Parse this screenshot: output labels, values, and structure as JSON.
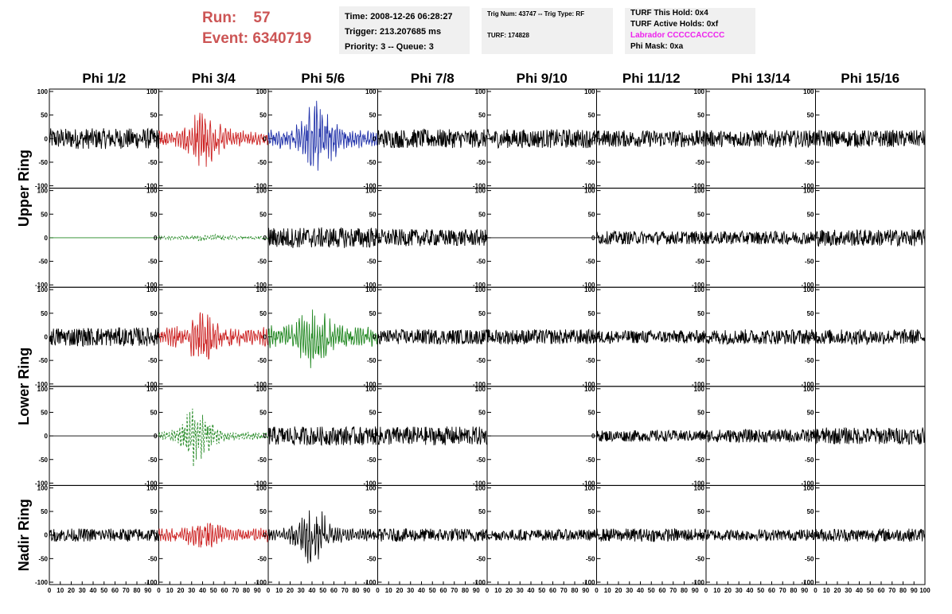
{
  "header": {
    "run_label": "Run:",
    "run_value": "57",
    "event_label": "Event:",
    "event_value": "6340719",
    "time": "Time: 2008-12-26 06:28:27",
    "trigger": "Trigger: 213.207685 ms",
    "priority": "Priority: 3 -- Queue: 3",
    "trig_num": "Trig Num: 43747 -- Trig Type: RF",
    "turf": "TURF: 174828",
    "turf_this_hold": "TURF This Hold: 0x4",
    "turf_active_holds": "TURF Active Holds: 0xf",
    "labrador": "Labrador CCCCCACCCC",
    "phi_mask": "Phi Mask: 0xa"
  },
  "colors": {
    "run_text": "#cc5555",
    "labrador_text": "#ee22ee",
    "red_trace": "#cc2222",
    "blue_trace": "#2233aa",
    "green_trace": "#228822",
    "black_trace": "#000000"
  },
  "chart_data": {
    "type": "line",
    "columns": [
      "Phi 1/2",
      "Phi 3/4",
      "Phi 5/6",
      "Phi 7/8",
      "Phi 9/10",
      "Phi 11/12",
      "Phi 13/14",
      "Phi 15/16"
    ],
    "ring_labels": [
      "Upper Ring",
      "Lower Ring",
      "Nadir Ring"
    ],
    "xlim": [
      0,
      100
    ],
    "ylim": [
      -100,
      100
    ],
    "x_tick_labels": [
      "0",
      "10",
      "20",
      "30",
      "40",
      "50",
      "60",
      "70",
      "80",
      "90",
      "100"
    ],
    "y_tick_labels": [
      "100",
      "50",
      "0",
      "-50",
      "-100"
    ],
    "grid": false,
    "rows": [
      [
        {
          "color": "black",
          "amp": 22,
          "burst": 0,
          "center": 50
        },
        {
          "color": "red",
          "amp": 18,
          "burst": 55,
          "center": 42
        },
        {
          "color": "blue",
          "amp": 22,
          "burst": 75,
          "center": 46
        },
        {
          "color": "black",
          "amp": 20,
          "burst": 0,
          "center": 50
        },
        {
          "color": "black",
          "amp": 20,
          "burst": 0,
          "center": 50
        },
        {
          "color": "black",
          "amp": 18,
          "burst": 0,
          "center": 50
        },
        {
          "color": "black",
          "amp": 18,
          "burst": 0,
          "center": 50
        },
        {
          "color": "black",
          "amp": 18,
          "burst": 0,
          "center": 50
        }
      ],
      [
        {
          "color": "green",
          "amp": 0,
          "burst": 0,
          "center": 50
        },
        {
          "color": "green",
          "amp": 4,
          "burst": 4,
          "center": 45,
          "dashed": true
        },
        {
          "color": "black",
          "amp": 22,
          "burst": 0,
          "center": 50
        },
        {
          "color": "black",
          "amp": 18,
          "burst": 0,
          "center": 50
        },
        {
          "color": "black",
          "amp": 0,
          "burst": 0,
          "center": 50
        },
        {
          "color": "black",
          "amp": 14,
          "burst": 0,
          "center": 50
        },
        {
          "color": "black",
          "amp": 14,
          "burst": 0,
          "center": 50
        },
        {
          "color": "black",
          "amp": 18,
          "burst": 0,
          "center": 50
        }
      ],
      [
        {
          "color": "black",
          "amp": 20,
          "burst": 0,
          "center": 50
        },
        {
          "color": "red",
          "amp": 22,
          "burst": 35,
          "center": 40
        },
        {
          "color": "green",
          "amp": 25,
          "burst": 45,
          "center": 42
        },
        {
          "color": "black",
          "amp": 16,
          "burst": 0,
          "center": 50
        },
        {
          "color": "black",
          "amp": 16,
          "burst": 0,
          "center": 50
        },
        {
          "color": "black",
          "amp": 14,
          "burst": 0,
          "center": 50
        },
        {
          "color": "black",
          "amp": 16,
          "burst": 0,
          "center": 50
        },
        {
          "color": "black",
          "amp": 16,
          "burst": 0,
          "center": 50
        }
      ],
      [
        {
          "color": "black",
          "amp": 0,
          "burst": 0,
          "center": 50
        },
        {
          "color": "green",
          "amp": 10,
          "burst": 60,
          "center": 35,
          "dashed": true
        },
        {
          "color": "black",
          "amp": 20,
          "burst": 0,
          "center": 50
        },
        {
          "color": "black",
          "amp": 20,
          "burst": 0,
          "center": 50
        },
        {
          "color": "black",
          "amp": 0,
          "burst": 0,
          "center": 50
        },
        {
          "color": "black",
          "amp": 12,
          "burst": 0,
          "center": 50
        },
        {
          "color": "black",
          "amp": 14,
          "burst": 0,
          "center": 50
        },
        {
          "color": "black",
          "amp": 18,
          "burst": 0,
          "center": 50
        }
      ],
      [
        {
          "color": "black",
          "amp": 14,
          "burst": 0,
          "center": 50
        },
        {
          "color": "red",
          "amp": 16,
          "burst": 20,
          "center": 42
        },
        {
          "color": "black",
          "amp": 16,
          "burst": 55,
          "center": 40
        },
        {
          "color": "black",
          "amp": 14,
          "burst": 0,
          "center": 50
        },
        {
          "color": "black",
          "amp": 12,
          "burst": 0,
          "center": 50
        },
        {
          "color": "black",
          "amp": 14,
          "burst": 0,
          "center": 50
        },
        {
          "color": "black",
          "amp": 12,
          "burst": 0,
          "center": 50
        },
        {
          "color": "black",
          "amp": 14,
          "burst": 0,
          "center": 50
        }
      ]
    ]
  }
}
